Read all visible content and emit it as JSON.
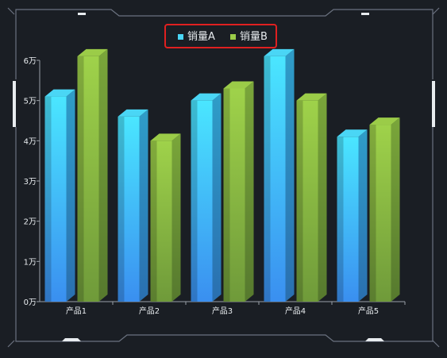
{
  "chart_data": {
    "type": "bar",
    "categories": [
      "产品1",
      "产品2",
      "产品3",
      "产品4",
      "产品5"
    ],
    "series": [
      {
        "name": "销量A",
        "values": [
          51000,
          46000,
          50000,
          61000,
          41000
        ]
      },
      {
        "name": "销量B",
        "values": [
          61000,
          40000,
          53000,
          50000,
          44000
        ]
      }
    ],
    "yticks": [
      "0万",
      "1万",
      "2万",
      "3万",
      "4万",
      "5万",
      "6万"
    ],
    "ylim": [
      0,
      60000
    ],
    "legend_position": "top-center",
    "grid": false
  },
  "colors": {
    "background": "#1a1e24",
    "frame": "#6b7280",
    "axis": "#9aa0a8",
    "text": "#e8ecef",
    "seriesA_top": "#4ad6f5",
    "seriesA_bottom": "#3a8ff0",
    "seriesA_side": "#2c78b8",
    "seriesB_top": "#9bcc48",
    "seriesB_bottom": "#6f9a3a",
    "seriesB_side": "#5f8b34",
    "legend_highlight": "#e02020"
  }
}
